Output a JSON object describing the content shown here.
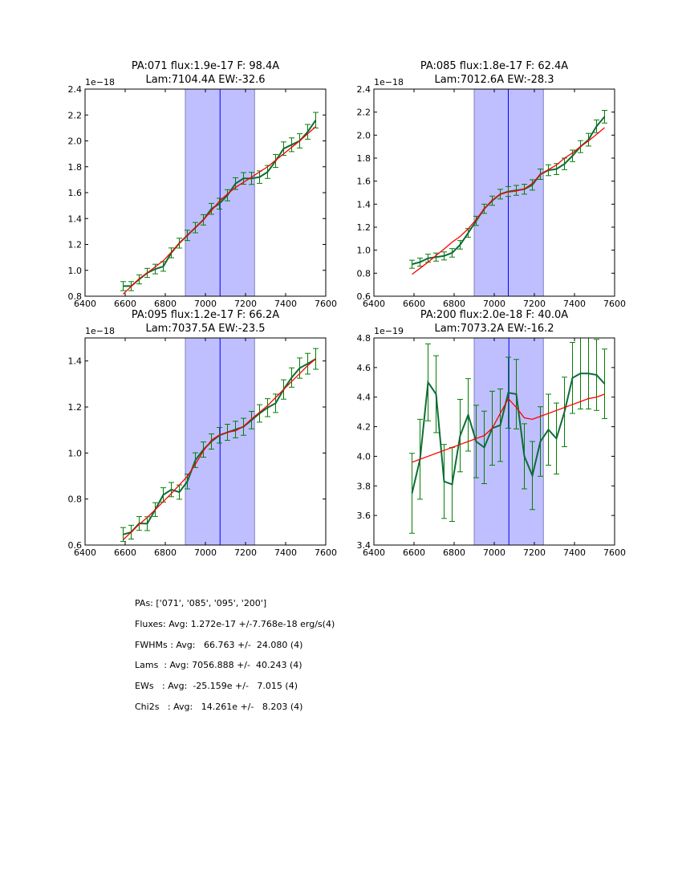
{
  "chart_data": [
    {
      "type": "line",
      "title": [
        "PA:071 flux:1.9e-17 F: 98.4A",
        "Lam:7104.4A EW:-32.6"
      ],
      "offset_label": "1e−18",
      "xlim": [
        6400,
        7600
      ],
      "ylim": [
        0.8,
        2.4
      ],
      "xticks": [
        6400,
        6600,
        6800,
        7000,
        7200,
        7400,
        7600
      ],
      "yticks": [
        0.8,
        1.0,
        1.2,
        1.4,
        1.6,
        1.8,
        2.0,
        2.2,
        2.4
      ],
      "band": [
        6900,
        7245
      ],
      "line_center": 7073,
      "x": [
        6590,
        6630,
        6670,
        6710,
        6750,
        6790,
        6830,
        6870,
        6910,
        6950,
        6990,
        7030,
        7070,
        7110,
        7150,
        7190,
        7230,
        7270,
        7310,
        7350,
        7390,
        7430,
        7470,
        7510,
        7550
      ],
      "data": [
        0.878,
        0.878,
        0.93,
        0.98,
        1.01,
        1.03,
        1.135,
        1.21,
        1.27,
        1.33,
        1.39,
        1.475,
        1.515,
        1.58,
        1.67,
        1.71,
        1.71,
        1.72,
        1.76,
        1.845,
        1.94,
        1.97,
        2.0,
        2.07,
        2.16
      ],
      "err": [
        0.035,
        0.035,
        0.035,
        0.035,
        0.037,
        0.037,
        0.038,
        0.038,
        0.04,
        0.04,
        0.04,
        0.042,
        0.042,
        0.043,
        0.045,
        0.045,
        0.047,
        0.048,
        0.05,
        0.05,
        0.052,
        0.053,
        0.055,
        0.057,
        0.06
      ],
      "fit": [
        0.816,
        0.876,
        0.936,
        0.98,
        1.027,
        1.074,
        1.14,
        1.21,
        1.27,
        1.33,
        1.39,
        1.46,
        1.535,
        1.59,
        1.64,
        1.68,
        1.72,
        1.76,
        1.8,
        1.85,
        1.9,
        1.95,
        2.0,
        2.055,
        2.11
      ]
    },
    {
      "type": "line",
      "title": [
        "PA:085 flux:1.8e-17 F: 62.4A",
        "Lam:7012.6A EW:-28.3"
      ],
      "offset_label": "1e−18",
      "xlim": [
        6400,
        7600
      ],
      "ylim": [
        0.6,
        2.4
      ],
      "xticks": [
        6400,
        6600,
        6800,
        7000,
        7200,
        7400,
        7600
      ],
      "yticks": [
        0.6,
        0.8,
        1.0,
        1.2,
        1.4,
        1.6,
        1.8,
        2.0,
        2.2,
        2.4
      ],
      "band": [
        6900,
        7245
      ],
      "line_center": 7070,
      "x": [
        6590,
        6630,
        6670,
        6710,
        6750,
        6790,
        6830,
        6870,
        6910,
        6950,
        6990,
        7030,
        7070,
        7110,
        7150,
        7190,
        7230,
        7270,
        7310,
        7350,
        7390,
        7430,
        7470,
        7510,
        7550
      ],
      "data": [
        0.878,
        0.896,
        0.93,
        0.94,
        0.95,
        0.977,
        1.047,
        1.15,
        1.255,
        1.36,
        1.43,
        1.487,
        1.51,
        1.52,
        1.53,
        1.567,
        1.66,
        1.695,
        1.705,
        1.75,
        1.82,
        1.9,
        1.96,
        2.077,
        2.16
      ],
      "err": [
        0.035,
        0.035,
        0.035,
        0.035,
        0.035,
        0.037,
        0.037,
        0.038,
        0.04,
        0.04,
        0.04,
        0.042,
        0.043,
        0.043,
        0.043,
        0.045,
        0.045,
        0.047,
        0.048,
        0.05,
        0.05,
        0.052,
        0.055,
        0.055,
        0.055
      ],
      "fit": [
        0.79,
        0.843,
        0.896,
        0.954,
        1.01,
        1.07,
        1.12,
        1.186,
        1.267,
        1.36,
        1.436,
        1.487,
        1.505,
        1.514,
        1.533,
        1.58,
        1.66,
        1.7,
        1.74,
        1.8,
        1.845,
        1.9,
        1.95,
        2.007,
        2.065
      ]
    },
    {
      "type": "line",
      "title": [
        "PA:095 flux:1.2e-17 F: 66.2A",
        "Lam:7037.5A EW:-23.5"
      ],
      "offset_label": "1e−18",
      "xlim": [
        6400,
        7600
      ],
      "ylim": [
        0.6,
        1.5
      ],
      "xticks": [
        6400,
        6600,
        6800,
        7000,
        7200,
        7400,
        7600
      ],
      "yticks": [
        0.6,
        0.8,
        1.0,
        1.2,
        1.4
      ],
      "band": [
        6900,
        7245
      ],
      "line_center": 7073,
      "x": [
        6590,
        6630,
        6670,
        6710,
        6750,
        6790,
        6830,
        6870,
        6910,
        6950,
        6990,
        7030,
        7070,
        7110,
        7150,
        7190,
        7230,
        7270,
        7310,
        7350,
        7390,
        7430,
        7470,
        7510,
        7550
      ],
      "data": [
        0.646,
        0.656,
        0.694,
        0.693,
        0.754,
        0.818,
        0.841,
        0.83,
        0.876,
        0.969,
        1.015,
        1.05,
        1.077,
        1.09,
        1.102,
        1.114,
        1.143,
        1.172,
        1.197,
        1.216,
        1.276,
        1.328,
        1.369,
        1.388,
        1.409
      ],
      "err": [
        0.03,
        0.03,
        0.03,
        0.03,
        0.03,
        0.031,
        0.031,
        0.031,
        0.032,
        0.032,
        0.033,
        0.033,
        0.034,
        0.035,
        0.036,
        0.037,
        0.038,
        0.038,
        0.039,
        0.04,
        0.042,
        0.042,
        0.044,
        0.045,
        0.045
      ],
      "fit": [
        0.623,
        0.656,
        0.69,
        0.72,
        0.754,
        0.789,
        0.824,
        0.861,
        0.899,
        0.951,
        1.009,
        1.056,
        1.079,
        1.09,
        1.096,
        1.116,
        1.148,
        1.177,
        1.206,
        1.241,
        1.276,
        1.311,
        1.345,
        1.38,
        1.409
      ]
    },
    {
      "type": "line",
      "title": [
        "PA:200 flux:2.0e-18 F: 40.0A",
        "Lam:7073.2A EW:-16.2"
      ],
      "offset_label": "1e−19",
      "xlim": [
        6400,
        7600
      ],
      "ylim": [
        3.4,
        4.8
      ],
      "xticks": [
        6400,
        6600,
        6800,
        7000,
        7200,
        7400,
        7600
      ],
      "yticks": [
        3.4,
        3.6,
        3.8,
        4.0,
        4.2,
        4.4,
        4.6,
        4.8
      ],
      "band": [
        6900,
        7245
      ],
      "line_center": 7073,
      "x": [
        6590,
        6630,
        6670,
        6710,
        6750,
        6790,
        6830,
        6870,
        6910,
        6950,
        6990,
        7030,
        7070,
        7110,
        7150,
        7190,
        7230,
        7270,
        7310,
        7350,
        7390,
        7430,
        7470,
        7510,
        7550
      ],
      "data": [
        3.75,
        3.98,
        4.5,
        4.42,
        3.83,
        3.81,
        4.14,
        4.28,
        4.1,
        4.06,
        4.19,
        4.21,
        4.43,
        4.42,
        4.0,
        3.87,
        4.1,
        4.18,
        4.12,
        4.3,
        4.53,
        4.56,
        4.56,
        4.55,
        4.49
      ],
      "err": [
        0.27,
        0.27,
        0.26,
        0.26,
        0.25,
        0.25,
        0.245,
        0.245,
        0.245,
        0.245,
        0.25,
        0.245,
        0.24,
        0.235,
        0.22,
        0.23,
        0.235,
        0.24,
        0.24,
        0.235,
        0.24,
        0.24,
        0.24,
        0.24,
        0.235
      ],
      "fit": [
        3.96,
        3.98,
        4.0,
        4.02,
        4.04,
        4.06,
        4.08,
        4.1,
        4.12,
        4.14,
        4.19,
        4.29,
        4.39,
        4.33,
        4.26,
        4.25,
        4.27,
        4.29,
        4.31,
        4.33,
        4.35,
        4.37,
        4.39,
        4.4,
        4.42
      ]
    }
  ],
  "colors": {
    "data_line": "#0d6b38",
    "errorbar": "#008000",
    "fit": "#ff0000",
    "band": "#bfbfff",
    "band_edge": "#7f7fbf",
    "center_line": "#0000ff"
  },
  "stats": [
    "PAs: ['071', '085', '095', '200']",
    "Fluxes: Avg: 1.272e-17 +/-7.768e-18 erg/s(4)",
    "FWHMs : Avg:   66.763 +/-  24.080 (4)",
    "Lams  : Avg: 7056.888 +/-  40.243 (4)",
    "EWs   : Avg:  -25.159e +/-   7.015 (4)",
    "Chi2s   : Avg:   14.261e +/-   8.203 (4)"
  ]
}
